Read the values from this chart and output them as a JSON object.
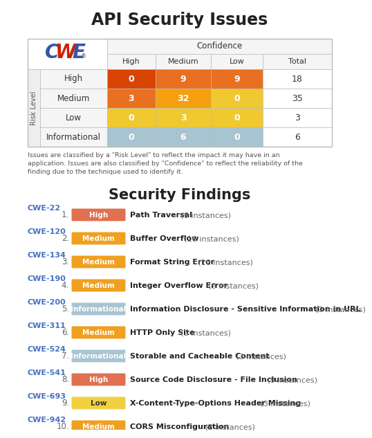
{
  "title": "API Security Issues",
  "subtitle": "Security Findings",
  "description": "Issues are classified by a \"Risk Level\" to reflect the impact it may have in an\napplication. Issues are also classified by \"Confidence\" to reflect the reliability of the\nfinding due to the technique used to identify it.",
  "table": {
    "col_headers": [
      "High",
      "Medium",
      "Low",
      "Total"
    ],
    "row_headers": [
      "High",
      "Medium",
      "Low",
      "Informational"
    ],
    "data": [
      [
        0,
        9,
        9,
        18
      ],
      [
        3,
        32,
        0,
        35
      ],
      [
        0,
        3,
        0,
        3
      ],
      [
        0,
        6,
        0,
        6
      ]
    ],
    "cell_colors": [
      [
        "#d94400",
        "#e87020",
        "#e87020",
        "#ffffff"
      ],
      [
        "#e87020",
        "#f5a010",
        "#f0c830",
        "#ffffff"
      ],
      [
        "#f0c830",
        "#f0c830",
        "#f0c830",
        "#ffffff"
      ],
      [
        "#a8c4d0",
        "#a8c4d0",
        "#a8c4d0",
        "#ffffff"
      ]
    ]
  },
  "findings": [
    {
      "cwe": "CWE-22",
      "num": 1,
      "level": "High",
      "level_color": "#e07050",
      "title": "Path Traversal",
      "instances": 9
    },
    {
      "cwe": "CWE-120",
      "num": 2,
      "level": "Medium",
      "level_color": "#f0a020",
      "title": "Buffer Overflow",
      "instances": 10
    },
    {
      "cwe": "CWE-134",
      "num": 3,
      "level": "Medium",
      "level_color": "#f0a020",
      "title": "Format String Error",
      "instances": 10
    },
    {
      "cwe": "CWE-190",
      "num": 4,
      "level": "Medium",
      "level_color": "#f0a020",
      "title": "Integer Overflow Error",
      "instances": 9
    },
    {
      "cwe": "CWE-200",
      "num": 5,
      "level": "Informational",
      "level_color": "#a8c4d0",
      "title": "Information Disclosure - Sensitive Information in URL",
      "instances": 3
    },
    {
      "cwe": "CWE-311",
      "num": 6,
      "level": "Medium",
      "level_color": "#f0a020",
      "title": "HTTP Only Site",
      "instances": 3
    },
    {
      "cwe": "CWE-524",
      "num": 7,
      "level": "Informational",
      "level_color": "#a8c4d0",
      "title": "Storable and Cacheable Content",
      "instances": 3
    },
    {
      "cwe": "CWE-541",
      "num": 8,
      "level": "High",
      "level_color": "#e07050",
      "title": "Source Code Disclosure - File Inclusion",
      "instances": 9
    },
    {
      "cwe": "CWE-693",
      "num": 9,
      "level": "Low",
      "level_color": "#f0d040",
      "title": "X-Content-Type-Options Header Missing",
      "instances": 3
    },
    {
      "cwe": "CWE-942",
      "num": 10,
      "level": "Medium",
      "level_color": "#f0a020",
      "title": "CORS Misconfiguration",
      "instances": 3
    }
  ],
  "colors": {
    "background": "#ffffff",
    "title_color": "#222222",
    "cwe_color": "#4472c4",
    "desc_color": "#555555"
  }
}
